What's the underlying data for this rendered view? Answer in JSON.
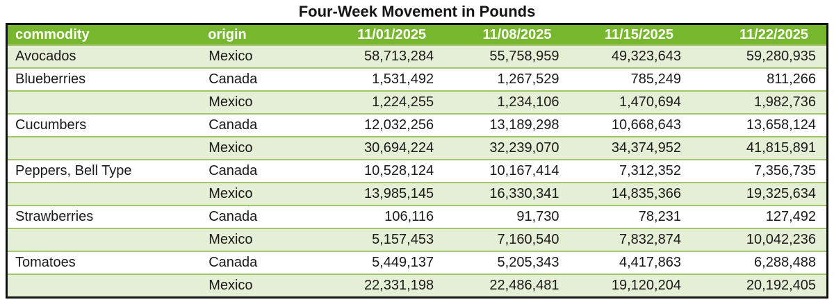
{
  "title": "Four-Week Movement in Pounds",
  "colors": {
    "header_bg": "#77b72d",
    "header_text": "#ffffff",
    "row_bg": "#ffffff",
    "row_alt_bg": "#e4efd6",
    "grid_line": "#a3c56c",
    "outer_border": "#121212",
    "body_text": "#1a1a1a"
  },
  "table": {
    "columns": [
      {
        "label": "commodity"
      },
      {
        "label": "origin"
      },
      {
        "label": "11/01/2025"
      },
      {
        "label": "11/08/2025"
      },
      {
        "label": "11/15/2025"
      },
      {
        "label": "11/22/2025"
      }
    ],
    "rows": [
      {
        "commodity": "Avocados",
        "origin": "Mexico",
        "values": [
          "58,713,284",
          "55,758,959",
          "49,323,643",
          "59,280,935"
        ]
      },
      {
        "commodity": "Blueberries",
        "origin": "Canada",
        "values": [
          "1,531,492",
          "1,267,529",
          "785,249",
          "811,266"
        ]
      },
      {
        "commodity": "",
        "origin": "Mexico",
        "values": [
          "1,224,255",
          "1,234,106",
          "1,470,694",
          "1,982,736"
        ]
      },
      {
        "commodity": "Cucumbers",
        "origin": "Canada",
        "values": [
          "12,032,256",
          "13,189,298",
          "10,668,643",
          "13,658,124"
        ]
      },
      {
        "commodity": "",
        "origin": "Mexico",
        "values": [
          "30,694,224",
          "32,239,070",
          "34,374,952",
          "41,815,891"
        ]
      },
      {
        "commodity": "Peppers, Bell Type",
        "origin": "Canada",
        "values": [
          "10,528,124",
          "10,167,414",
          "7,312,352",
          "7,356,735"
        ]
      },
      {
        "commodity": "",
        "origin": "Mexico",
        "values": [
          "13,985,145",
          "16,330,341",
          "14,835,366",
          "19,325,634"
        ]
      },
      {
        "commodity": "Strawberries",
        "origin": "Canada",
        "values": [
          "106,116",
          "91,730",
          "78,231",
          "127,492"
        ]
      },
      {
        "commodity": "",
        "origin": "Mexico",
        "values": [
          "5,157,453",
          "7,160,540",
          "7,832,874",
          "10,042,236"
        ]
      },
      {
        "commodity": "Tomatoes",
        "origin": "Canada",
        "values": [
          "5,449,137",
          "5,205,343",
          "4,417,863",
          "6,288,488"
        ]
      },
      {
        "commodity": "",
        "origin": "Mexico",
        "values": [
          "22,331,198",
          "22,486,481",
          "19,120,204",
          "20,192,405"
        ]
      }
    ]
  },
  "chart_data": {
    "type": "table",
    "title": "Four-Week Movement in Pounds",
    "columns": [
      "commodity",
      "origin",
      "11/01/2025",
      "11/08/2025",
      "11/15/2025",
      "11/22/2025"
    ],
    "rows": [
      [
        "Avocados",
        "Mexico",
        58713284,
        55758959,
        49323643,
        59280935
      ],
      [
        "Blueberries",
        "Canada",
        1531492,
        1267529,
        785249,
        811266
      ],
      [
        "Blueberries",
        "Mexico",
        1224255,
        1234106,
        1470694,
        1982736
      ],
      [
        "Cucumbers",
        "Canada",
        12032256,
        13189298,
        10668643,
        13658124
      ],
      [
        "Cucumbers",
        "Mexico",
        30694224,
        32239070,
        34374952,
        41815891
      ],
      [
        "Peppers, Bell Type",
        "Canada",
        10528124,
        10167414,
        7312352,
        7356735
      ],
      [
        "Peppers, Bell Type",
        "Mexico",
        13985145,
        16330341,
        14835366,
        19325634
      ],
      [
        "Strawberries",
        "Canada",
        106116,
        91730,
        78231,
        127492
      ],
      [
        "Strawberries",
        "Mexico",
        5157453,
        7160540,
        7832874,
        10042236
      ],
      [
        "Tomatoes",
        "Canada",
        5449137,
        5205343,
        4417863,
        6288488
      ],
      [
        "Tomatoes",
        "Mexico",
        22331198,
        22486481,
        19120204,
        20192405
      ]
    ]
  }
}
